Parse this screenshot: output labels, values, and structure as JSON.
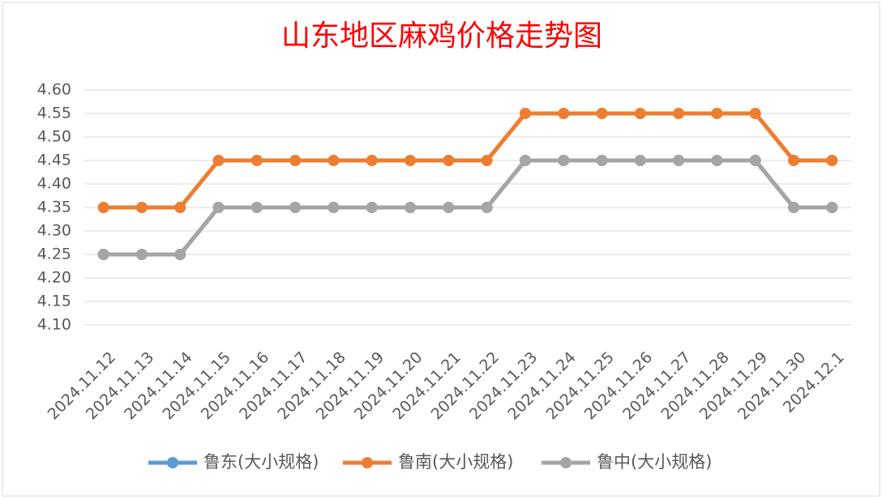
{
  "chart_data": {
    "type": "line",
    "title": "山东地区麻鸡价格走势图",
    "categories": [
      "2024.11.12",
      "2024.11.13",
      "2024.11.14",
      "2024.11.15",
      "2024.11.16",
      "2024.11.17",
      "2024.11.18",
      "2024.11.19",
      "2024.11.20",
      "2024.11.21",
      "2024.11.22",
      "2024.11.23",
      "2024.11.24",
      "2024.11.25",
      "2024.11.26",
      "2024.11.27",
      "2024.11.28",
      "2024.11.29",
      "2024.11.30",
      "2024.12.1"
    ],
    "series": [
      {
        "name": "鲁东(大小规格)",
        "color": "#5b9bd5",
        "values": [
          4.25,
          4.25,
          4.25,
          4.35,
          4.35,
          4.35,
          4.35,
          4.35,
          4.35,
          4.35,
          4.35,
          4.45,
          4.45,
          4.45,
          4.45,
          4.45,
          4.45,
          4.45,
          4.35,
          4.35
        ]
      },
      {
        "name": "鲁南(大小规格)",
        "color": "#ed7d31",
        "values": [
          4.35,
          4.35,
          4.35,
          4.45,
          4.45,
          4.45,
          4.45,
          4.45,
          4.45,
          4.45,
          4.45,
          4.55,
          4.55,
          4.55,
          4.55,
          4.55,
          4.55,
          4.55,
          4.45,
          4.45
        ]
      },
      {
        "name": "鲁中(大小规格)",
        "color": "#a5a5a5",
        "values": [
          4.25,
          4.25,
          4.25,
          4.35,
          4.35,
          4.35,
          4.35,
          4.35,
          4.35,
          4.35,
          4.35,
          4.45,
          4.45,
          4.45,
          4.45,
          4.45,
          4.45,
          4.45,
          4.35,
          4.35
        ]
      }
    ],
    "ylim": [
      4.1,
      4.6
    ],
    "yticks": [
      {
        "value": 4.1,
        "label": "4.10"
      },
      {
        "value": 4.15,
        "label": "4.15"
      },
      {
        "value": 4.2,
        "label": "4.20"
      },
      {
        "value": 4.25,
        "label": "4.25"
      },
      {
        "value": 4.3,
        "label": "4.30"
      },
      {
        "value": 4.35,
        "label": "4.35"
      },
      {
        "value": 4.4,
        "label": "4.40"
      },
      {
        "value": 4.45,
        "label": "4.45"
      },
      {
        "value": 4.5,
        "label": "4.50"
      },
      {
        "value": 4.55,
        "label": "4.55"
      },
      {
        "value": 4.6,
        "label": "4.60"
      }
    ],
    "grid": true,
    "legend": "bottom"
  }
}
